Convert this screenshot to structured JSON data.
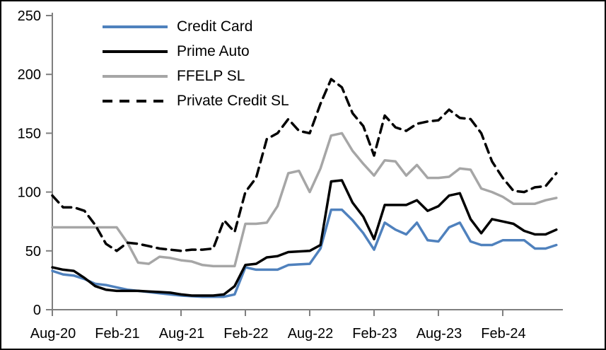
{
  "chart_data": {
    "type": "line",
    "title": "",
    "grid": false,
    "legend_position": "top-left-inside",
    "axis_color": "#7F7F7F",
    "background_color": "#FFFFFF",
    "y_axis": {
      "min": 0,
      "max": 250,
      "step": 50,
      "tick_labels": [
        "0",
        "50",
        "100",
        "150",
        "200",
        "250"
      ]
    },
    "x_axis": {
      "frequency": "monthly",
      "start": "Aug-20",
      "end": "Jul-24",
      "points_per_tick": 6,
      "tick_labels": [
        "Aug-20",
        "Feb-21",
        "Aug-21",
        "Feb-22",
        "Aug-22",
        "Feb-23",
        "Aug-23",
        "Feb-24"
      ]
    },
    "series": [
      {
        "name": "Credit Card",
        "color": "#4F81BD",
        "dash": "solid",
        "values": [
          33,
          30,
          29,
          26,
          22,
          21,
          19,
          17,
          16,
          15,
          14,
          13,
          12,
          11.5,
          11,
          11,
          11,
          13,
          36,
          34,
          34,
          34,
          38,
          38.5,
          39,
          52,
          85,
          85,
          76,
          65,
          51,
          74,
          68,
          64,
          74,
          59,
          58,
          70,
          74,
          58,
          55,
          55,
          59,
          59,
          59,
          52,
          52,
          55
        ]
      },
      {
        "name": "Prime Auto",
        "color": "#000000",
        "dash": "solid",
        "values": [
          36,
          34,
          33,
          27,
          20,
          17,
          16,
          16,
          16,
          15.5,
          15,
          14.5,
          13,
          12,
          12,
          12,
          13,
          20,
          38,
          39,
          44.5,
          45.5,
          49,
          49.5,
          50,
          55,
          109,
          110,
          91,
          79,
          60,
          89,
          89,
          89,
          93,
          84,
          88,
          97,
          99,
          77,
          65,
          77,
          75,
          73,
          67,
          64,
          64,
          68
        ]
      },
      {
        "name": "FFELP SL",
        "color": "#A6A6A6",
        "dash": "solid",
        "values": [
          70,
          70,
          70,
          70,
          70,
          70,
          70,
          57,
          40,
          39,
          45,
          44,
          42,
          41,
          38,
          37,
          37,
          37,
          73,
          73,
          74,
          88,
          116,
          118,
          100,
          120,
          148,
          150,
          135,
          124,
          114,
          127,
          126,
          114,
          123,
          112,
          112,
          113,
          120,
          119,
          103,
          100,
          96,
          90,
          90,
          90,
          93,
          95
        ]
      },
      {
        "name": "Private Credit SL",
        "color": "#000000",
        "dash": "dashed",
        "values": [
          97,
          87,
          87,
          84,
          72,
          56,
          50,
          57,
          56,
          54,
          52,
          51,
          50,
          51,
          51,
          52,
          76,
          66,
          100,
          112,
          145,
          150,
          162,
          152,
          150,
          175,
          196,
          189,
          167,
          156,
          131,
          165,
          155,
          152,
          158,
          160,
          161,
          170,
          163,
          162,
          150,
          126,
          112,
          101,
          100,
          104,
          105,
          116
        ]
      }
    ]
  }
}
